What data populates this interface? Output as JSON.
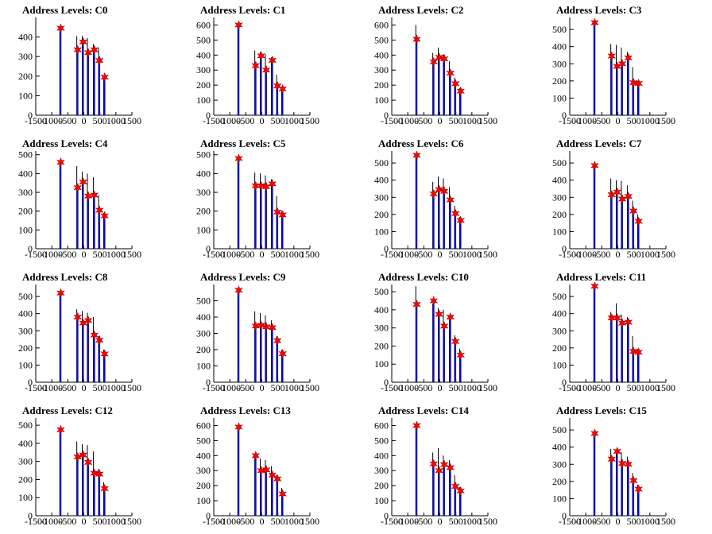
{
  "colors": {
    "axis": "#000000",
    "histogram_primary": "#0000ff",
    "histogram_secondary": "#000000",
    "marker": "#ff0000"
  },
  "icons": {
    "marker": "red-star-marker"
  },
  "chart_data": [
    {
      "type": "bar",
      "title": "Address Levels: C0",
      "xlim": [
        -1500,
        1500
      ],
      "ylim": [
        0,
        500
      ],
      "xticks": [
        -1500,
        -1000,
        -500,
        0,
        500,
        1000,
        1500
      ],
      "yticks": [
        0,
        100,
        200,
        300,
        400
      ],
      "peaks_x": [
        -720,
        -190,
        -20,
        140,
        330,
        490,
        650
      ],
      "peaks_y": [
        445,
        335,
        375,
        320,
        335,
        280,
        195
      ],
      "black_y": [
        445,
        405,
        405,
        395,
        365,
        345,
        200
      ]
    },
    {
      "type": "bar",
      "title": "Address Levels: C1",
      "xlim": [
        -1500,
        1500
      ],
      "ylim": [
        0,
        650
      ],
      "xticks": [
        -1500,
        -1000,
        -500,
        0,
        500,
        1000,
        1500
      ],
      "yticks": [
        0,
        100,
        200,
        300,
        400,
        500,
        600
      ],
      "peaks_x": [
        -720,
        -190,
        -20,
        140,
        330,
        490,
        650
      ],
      "peaks_y": [
        600,
        330,
        395,
        300,
        365,
        195,
        175
      ],
      "black_y": [
        600,
        430,
        420,
        405,
        385,
        270,
        185
      ]
    },
    {
      "type": "bar",
      "title": "Address Levels: C2",
      "xlim": [
        -1500,
        1500
      ],
      "ylim": [
        0,
        650
      ],
      "xticks": [
        -1500,
        -1000,
        -500,
        0,
        500,
        1000,
        1500
      ],
      "yticks": [
        0,
        100,
        200,
        300,
        400,
        500,
        600
      ],
      "peaks_x": [
        -720,
        -190,
        -20,
        140,
        330,
        490,
        650
      ],
      "peaks_y": [
        505,
        355,
        385,
        375,
        280,
        210,
        160
      ],
      "black_y": [
        600,
        415,
        450,
        405,
        360,
        250,
        180
      ]
    },
    {
      "type": "bar",
      "title": "Address Levels: C3",
      "xlim": [
        -1500,
        1500
      ],
      "ylim": [
        0,
        570
      ],
      "xticks": [
        -1500,
        -1000,
        -500,
        0,
        500,
        1000,
        1500
      ],
      "yticks": [
        0,
        100,
        200,
        300,
        400,
        500
      ],
      "peaks_x": [
        -720,
        -190,
        -20,
        140,
        330,
        490,
        650
      ],
      "peaks_y": [
        540,
        345,
        285,
        300,
        335,
        190,
        185
      ],
      "black_y": [
        540,
        415,
        410,
        395,
        370,
        280,
        200
      ]
    },
    {
      "type": "bar",
      "title": "Address Levels: C4",
      "xlim": [
        -1500,
        1500
      ],
      "ylim": [
        0,
        520
      ],
      "xticks": [
        -1500,
        -1000,
        -500,
        0,
        500,
        1000,
        1500
      ],
      "yticks": [
        0,
        100,
        200,
        300,
        400,
        500
      ],
      "peaks_x": [
        -720,
        -190,
        -20,
        140,
        330,
        490,
        650
      ],
      "peaks_y": [
        460,
        325,
        355,
        280,
        285,
        205,
        175
      ],
      "black_y": [
        460,
        440,
        410,
        400,
        380,
        285,
        190
      ]
    },
    {
      "type": "bar",
      "title": "Address Levels: C5",
      "xlim": [
        -1500,
        1500
      ],
      "ylim": [
        0,
        520
      ],
      "xticks": [
        -1500,
        -1000,
        -500,
        0,
        500,
        1000,
        1500
      ],
      "yticks": [
        0,
        100,
        200,
        300,
        400,
        500
      ],
      "peaks_x": [
        -720,
        -190,
        -20,
        140,
        330,
        490,
        650
      ],
      "peaks_y": [
        480,
        335,
        335,
        330,
        345,
        195,
        180
      ],
      "black_y": [
        480,
        405,
        400,
        390,
        370,
        280,
        200
      ]
    },
    {
      "type": "bar",
      "title": "Address Levels: C6",
      "xlim": [
        -1500,
        1500
      ],
      "ylim": [
        0,
        570
      ],
      "xticks": [
        -1500,
        -1000,
        -500,
        0,
        500,
        1000,
        1500
      ],
      "yticks": [
        0,
        100,
        200,
        300,
        400,
        500
      ],
      "peaks_x": [
        -720,
        -190,
        -20,
        140,
        330,
        490,
        650
      ],
      "peaks_y": [
        545,
        320,
        345,
        335,
        285,
        205,
        165
      ],
      "black_y": [
        545,
        390,
        420,
        410,
        360,
        250,
        185
      ]
    },
    {
      "type": "bar",
      "title": "Address Levels: C7",
      "xlim": [
        -1500,
        1500
      ],
      "ylim": [
        0,
        570
      ],
      "xticks": [
        -1500,
        -1000,
        -500,
        0,
        500,
        1000,
        1500
      ],
      "yticks": [
        0,
        100,
        200,
        300,
        400,
        500
      ],
      "peaks_x": [
        -720,
        -190,
        -20,
        140,
        330,
        490,
        650
      ],
      "peaks_y": [
        485,
        315,
        330,
        290,
        305,
        220,
        160
      ],
      "black_y": [
        485,
        410,
        400,
        395,
        370,
        280,
        200
      ]
    },
    {
      "type": "bar",
      "title": "Address Levels: C8",
      "xlim": [
        -1500,
        1500
      ],
      "ylim": [
        0,
        570
      ],
      "xticks": [
        -1500,
        -1000,
        -500,
        0,
        500,
        1000,
        1500
      ],
      "yticks": [
        0,
        100,
        200,
        300,
        400,
        500
      ],
      "peaks_x": [
        -720,
        -190,
        -20,
        140,
        330,
        490,
        650
      ],
      "peaks_y": [
        520,
        380,
        345,
        360,
        275,
        245,
        165
      ],
      "black_y": [
        520,
        425,
        415,
        405,
        380,
        270,
        190
      ]
    },
    {
      "type": "bar",
      "title": "Address Levels: C9",
      "xlim": [
        -1500,
        1500
      ],
      "ylim": [
        0,
        600
      ],
      "xticks": [
        -1500,
        -1000,
        -500,
        0,
        500,
        1000,
        1500
      ],
      "yticks": [
        0,
        100,
        200,
        300,
        400,
        500
      ],
      "peaks_x": [
        -720,
        -190,
        -20,
        140,
        330,
        490,
        650
      ],
      "peaks_y": [
        565,
        345,
        350,
        340,
        335,
        255,
        175
      ],
      "black_y": [
        565,
        435,
        425,
        410,
        380,
        285,
        200
      ]
    },
    {
      "type": "bar",
      "title": "Address Levels: C10",
      "xlim": [
        -1500,
        1500
      ],
      "ylim": [
        0,
        540
      ],
      "xticks": [
        -1500,
        -1000,
        -500,
        0,
        500,
        1000,
        1500
      ],
      "yticks": [
        0,
        100,
        200,
        300,
        400,
        500
      ],
      "peaks_x": [
        -720,
        -190,
        -20,
        140,
        330,
        490,
        650
      ],
      "peaks_y": [
        430,
        450,
        375,
        310,
        360,
        225,
        150
      ],
      "black_y": [
        530,
        435,
        410,
        400,
        370,
        260,
        185
      ]
    },
    {
      "type": "bar",
      "title": "Address Levels: C11",
      "xlim": [
        -1500,
        1500
      ],
      "ylim": [
        0,
        570
      ],
      "xticks": [
        -1500,
        -1000,
        -500,
        0,
        500,
        1000,
        1500
      ],
      "yticks": [
        0,
        100,
        200,
        300,
        400,
        500
      ],
      "peaks_x": [
        -720,
        -190,
        -20,
        140,
        330,
        490,
        650
      ],
      "peaks_y": [
        560,
        375,
        375,
        345,
        350,
        180,
        175
      ],
      "black_y": [
        560,
        410,
        460,
        395,
        380,
        270,
        195
      ]
    },
    {
      "type": "bar",
      "title": "Address Levels: C12",
      "xlim": [
        -1500,
        1500
      ],
      "ylim": [
        0,
        540
      ],
      "xticks": [
        -1500,
        -1000,
        -500,
        0,
        500,
        1000,
        1500
      ],
      "yticks": [
        0,
        100,
        200,
        300,
        400,
        500
      ],
      "peaks_x": [
        -720,
        -190,
        -20,
        140,
        330,
        490,
        650
      ],
      "peaks_y": [
        475,
        325,
        335,
        295,
        235,
        230,
        150
      ],
      "black_y": [
        475,
        410,
        395,
        390,
        355,
        260,
        185
      ]
    },
    {
      "type": "bar",
      "title": "Address Levels: C13",
      "xlim": [
        -1500,
        1500
      ],
      "ylim": [
        0,
        650
      ],
      "xticks": [
        -1500,
        -1000,
        -500,
        0,
        500,
        1000,
        1500
      ],
      "yticks": [
        0,
        100,
        200,
        300,
        400,
        500,
        600
      ],
      "peaks_x": [
        -720,
        -190,
        -20,
        140,
        330,
        490,
        650
      ],
      "peaks_y": [
        590,
        400,
        300,
        305,
        270,
        245,
        145
      ],
      "black_y": [
        590,
        400,
        380,
        370,
        330,
        270,
        185
      ]
    },
    {
      "type": "bar",
      "title": "Address Levels: C14",
      "xlim": [
        -1500,
        1500
      ],
      "ylim": [
        0,
        650
      ],
      "xticks": [
        -1500,
        -1000,
        -500,
        0,
        500,
        1000,
        1500
      ],
      "yticks": [
        0,
        100,
        200,
        300,
        400,
        500,
        600
      ],
      "peaks_x": [
        -720,
        -190,
        -20,
        140,
        330,
        490,
        650
      ],
      "peaks_y": [
        600,
        345,
        300,
        340,
        320,
        195,
        165
      ],
      "black_y": [
        600,
        420,
        450,
        400,
        370,
        270,
        190
      ]
    },
    {
      "type": "bar",
      "title": "Address Levels: C15",
      "xlim": [
        -1500,
        1500
      ],
      "ylim": [
        0,
        570
      ],
      "xticks": [
        -1500,
        -1000,
        -500,
        0,
        500,
        1000,
        1500
      ],
      "yticks": [
        0,
        100,
        200,
        300,
        400,
        500
      ],
      "peaks_x": [
        -720,
        -190,
        -20,
        140,
        330,
        490,
        650
      ],
      "peaks_y": [
        480,
        330,
        375,
        305,
        300,
        205,
        155
      ],
      "black_y": [
        480,
        390,
        380,
        370,
        345,
        250,
        180
      ]
    }
  ]
}
